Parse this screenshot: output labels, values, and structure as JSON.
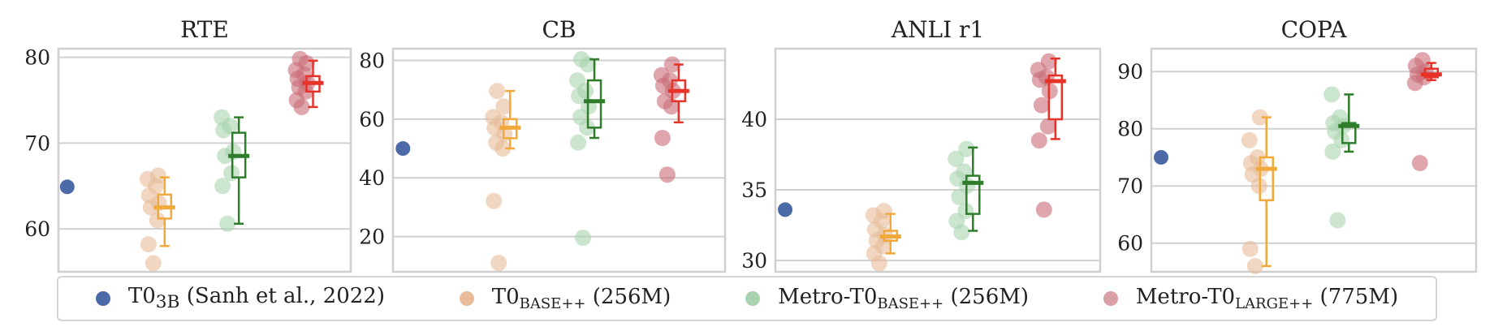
{
  "chart_data": [
    {
      "type": "box+scatter",
      "title": "RTE",
      "ylim": [
        55,
        81
      ],
      "yticks": [
        60,
        70,
        80
      ],
      "tick_labels": [
        "60",
        "70",
        "80"
      ],
      "groups": [
        {
          "series": "T0_3B",
          "points": [
            64.9
          ],
          "box": null
        },
        {
          "series": "T0_BASE++",
          "points": [
            56.0,
            58.2,
            61.0,
            62.5,
            63.0,
            63.9,
            65.0,
            65.8,
            66.2
          ],
          "box": {
            "min": 58.0,
            "q1": 61.2,
            "median": 62.5,
            "q3": 64.0,
            "max": 66.0
          }
        },
        {
          "series": "Metro-T0_BASE++",
          "points": [
            60.6,
            65.0,
            66.5,
            68.5,
            69.0,
            71.5,
            72.0,
            73.0
          ],
          "box": {
            "min": 60.6,
            "q1": 66.0,
            "median": 68.5,
            "q3": 71.2,
            "max": 73.0
          }
        },
        {
          "series": "Metro-T0_LARGE++",
          "points": [
            74.2,
            75.0,
            76.0,
            76.5,
            77.0,
            77.5,
            78.0,
            78.5,
            79.3,
            79.8
          ],
          "box": {
            "min": 74.2,
            "q1": 76.0,
            "median": 77.0,
            "q3": 77.8,
            "max": 79.6
          }
        }
      ]
    },
    {
      "type": "box+scatter",
      "title": "CB",
      "ylim": [
        8,
        84
      ],
      "yticks": [
        20,
        40,
        60,
        80
      ],
      "tick_labels": [
        "20",
        "40",
        "60",
        "80"
      ],
      "groups": [
        {
          "series": "T0_3B",
          "points": [
            50.0
          ],
          "box": null
        },
        {
          "series": "T0_BASE++",
          "points": [
            11.0,
            32.1,
            50.0,
            52.0,
            55.0,
            57.0,
            58.9,
            60.7,
            64.3,
            69.6
          ],
          "box": {
            "min": 50.0,
            "q1": 53.5,
            "median": 57.1,
            "q3": 60.0,
            "max": 69.6
          }
        },
        {
          "series": "Metro-T0_BASE++",
          "points": [
            19.6,
            52.0,
            57.1,
            60.7,
            64.3,
            67.9,
            69.6,
            73.2,
            78.6,
            80.4
          ],
          "box": {
            "min": 53.6,
            "q1": 57.1,
            "median": 66.1,
            "q3": 73.2,
            "max": 80.4
          }
        },
        {
          "series": "Metro-T0_LARGE++",
          "points": [
            41.1,
            53.6,
            64.3,
            66.1,
            69.6,
            71.4,
            73.2,
            75.0,
            78.6
          ],
          "box": {
            "min": 58.9,
            "q1": 66.1,
            "median": 69.6,
            "q3": 73.2,
            "max": 78.6
          }
        }
      ]
    },
    {
      "type": "box+scatter",
      "title": "ANLI r1",
      "ylim": [
        29.2,
        45
      ],
      "yticks": [
        30,
        35,
        40
      ],
      "tick_labels": [
        "30",
        "35",
        "40"
      ],
      "groups": [
        {
          "series": "T0_3B",
          "points": [
            33.6
          ],
          "box": null
        },
        {
          "series": "T0_BASE++",
          "points": [
            29.8,
            30.5,
            31.0,
            31.4,
            31.8,
            32.2,
            32.8,
            33.2,
            33.5
          ],
          "box": {
            "min": 30.5,
            "q1": 31.4,
            "median": 31.7,
            "q3": 32.1,
            "max": 33.3
          }
        },
        {
          "series": "Metro-T0_BASE++",
          "points": [
            32.0,
            32.8,
            33.5,
            34.5,
            35.3,
            35.8,
            36.3,
            37.2,
            37.9
          ],
          "box": {
            "min": 32.1,
            "q1": 33.3,
            "median": 35.5,
            "q3": 36.0,
            "max": 38.0
          }
        },
        {
          "series": "Metro-T0_LARGE++",
          "points": [
            33.6,
            38.5,
            39.5,
            41.0,
            42.0,
            42.8,
            43.0,
            43.5,
            44.1
          ],
          "box": {
            "min": 38.6,
            "q1": 40.0,
            "median": 42.7,
            "q3": 43.1,
            "max": 44.3
          }
        }
      ]
    },
    {
      "type": "box+scatter",
      "title": "COPA",
      "ylim": [
        55,
        94
      ],
      "yticks": [
        60,
        70,
        80,
        90
      ],
      "tick_labels": [
        "60",
        "70",
        "80",
        "90"
      ],
      "groups": [
        {
          "series": "T0_3B",
          "points": [
            75.0
          ],
          "box": null
        },
        {
          "series": "T0_BASE++",
          "points": [
            56.0,
            59.0,
            70.0,
            72.0,
            73.0,
            74.0,
            75.0,
            78.0,
            82.0
          ],
          "box": {
            "min": 56.0,
            "q1": 67.5,
            "median": 73.0,
            "q3": 75.0,
            "max": 82.0
          }
        },
        {
          "series": "Metro-T0_BASE++",
          "points": [
            64.0,
            76.0,
            78.0,
            79.5,
            80.5,
            81.0,
            82.0,
            86.0
          ],
          "box": {
            "min": 76.0,
            "q1": 77.5,
            "median": 80.5,
            "q3": 81.0,
            "max": 86.0
          }
        },
        {
          "series": "Metro-T0_LARGE++",
          "points": [
            74.0,
            88.0,
            89.0,
            89.5,
            90.0,
            91.0,
            92.0
          ],
          "box": {
            "min": 88.5,
            "q1": 89.0,
            "median": 89.5,
            "q3": 90.5,
            "max": 91.5
          }
        }
      ]
    }
  ],
  "legend": [
    {
      "key": "T0_3B",
      "base": "T0",
      "sub": "3B",
      "rest": " (Sanh et al., 2022)",
      "color": "#4c6aa8"
    },
    {
      "key": "T0_BASE++",
      "base": "T0",
      "sub": "BASE++",
      "rest": " (256M)",
      "color": "#e8bc9a"
    },
    {
      "key": "Metro-T0_BASE++",
      "base": "Metro-T0",
      "sub": "BASE++",
      "rest": " (256M)",
      "color": "#a8d3ad"
    },
    {
      "key": "Metro-T0_LARGE++",
      "base": "Metro-T0",
      "sub": "LARGE++",
      "rest": " (775M)",
      "color": "#d9a0a5"
    }
  ],
  "colors": {
    "T0_3B_point": "#4c6aa8",
    "T0_BASE++_point": "#e8bc9a",
    "T0_BASE++_box": "#f2a93b",
    "Metro-T0_BASE++_point": "#a8d3ad",
    "Metro-T0_BASE++_box": "#2e7d2b",
    "Metro-T0_LARGE++_point": "#c96d76",
    "Metro-T0_LARGE++_box": "#e6332a"
  }
}
